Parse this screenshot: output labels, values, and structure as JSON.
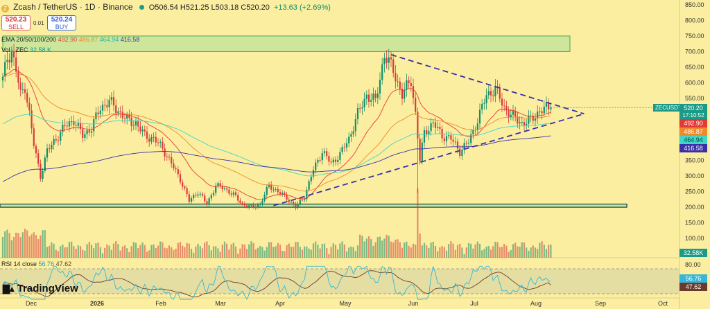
{
  "header": {
    "symbol": "Zcash / TetherUS · 1D · Binance",
    "open": "O506.54",
    "high": "H521.25",
    "low": "L503.18",
    "close": "C520.20",
    "change": "+13.63 (+2.69%)",
    "sell_price": "520.23",
    "sell_label": "SELL",
    "spread": "0.01",
    "buy_price": "520.24",
    "buy_label": "BUY",
    "ema_label": "EMA 20/50/100/200",
    "ema20": "492.90",
    "ema50": "486.87",
    "ema100": "464.94",
    "ema200": "416.58",
    "vol_label": "Vol · ZEC",
    "vol_value": "32.58 K",
    "rsi_label": "RSI 14 close",
    "rsi_value": "56.76",
    "rsi_ma": "47.62"
  },
  "price_tags": {
    "symbol": "ZECUSDT",
    "last": "520.20",
    "countdown": "17:10:52",
    "ema20": "492.90",
    "ema50": "486.87",
    "ema100": "464.94",
    "ema200": "416.58",
    "volume": "32.58K",
    "rsi": "56.76",
    "rsi_ma": "47.62"
  },
  "colors": {
    "background": "#fbeea0",
    "up": "#0f8f6a",
    "down": "#d93a3a",
    "ema20": "#e53935",
    "ema50": "#ef8a2b",
    "ema100": "#3fd6c6",
    "ema200": "#3a2fa8",
    "trendline": "#3a2fa8",
    "zone_fill": "#c9e69c",
    "zone_border": "#3aa04b",
    "rsi_line": "#36b7d6",
    "rsi_ma_line": "#6b3a2a"
  },
  "brand": "TradingView",
  "chart_data": {
    "type": "candlestick",
    "symbol": "ZECUSDT",
    "exchange": "Binance",
    "interval": "1D",
    "y_axis_ticks": [
      850,
      800,
      750,
      700,
      650,
      600,
      550,
      500,
      450,
      400,
      350,
      300,
      250,
      200,
      150,
      100
    ],
    "x_axis_ticks": [
      "Dec",
      "2026",
      "Feb",
      "Mar",
      "Apr",
      "May",
      "Jun",
      "Jul",
      "Aug",
      "Sep",
      "Oct"
    ],
    "rsi_axis_ticks": [
      80
    ],
    "ylim": [
      80,
      860
    ],
    "days": 248,
    "anchors": [
      [
        0,
        610
      ],
      [
        2,
        680
      ],
      [
        4,
        700
      ],
      [
        6,
        640
      ],
      [
        8,
        560
      ],
      [
        10,
        590
      ],
      [
        12,
        500
      ],
      [
        14,
        400
      ],
      [
        17,
        300
      ],
      [
        20,
        380
      ],
      [
        24,
        420
      ],
      [
        28,
        460
      ],
      [
        32,
        480
      ],
      [
        36,
        430
      ],
      [
        40,
        455
      ],
      [
        44,
        520
      ],
      [
        48,
        540
      ],
      [
        52,
        510
      ],
      [
        56,
        480
      ],
      [
        60,
        470
      ],
      [
        64,
        430
      ],
      [
        68,
        420
      ],
      [
        72,
        390
      ],
      [
        76,
        340
      ],
      [
        80,
        290
      ],
      [
        84,
        220
      ],
      [
        88,
        250
      ],
      [
        92,
        210
      ],
      [
        96,
        270
      ],
      [
        100,
        260
      ],
      [
        104,
        240
      ],
      [
        108,
        210
      ],
      [
        112,
        200
      ],
      [
        116,
        210
      ],
      [
        120,
        270
      ],
      [
        124,
        250
      ],
      [
        128,
        230
      ],
      [
        132,
        200
      ],
      [
        136,
        235
      ],
      [
        140,
        320
      ],
      [
        144,
        380
      ],
      [
        148,
        340
      ],
      [
        152,
        370
      ],
      [
        156,
        420
      ],
      [
        160,
        500
      ],
      [
        164,
        560
      ],
      [
        168,
        540
      ],
      [
        172,
        690
      ],
      [
        176,
        640
      ],
      [
        180,
        560
      ],
      [
        184,
        610
      ],
      [
        186,
        500
      ],
      [
        188,
        350
      ],
      [
        190,
        440
      ],
      [
        194,
        470
      ],
      [
        198,
        430
      ],
      [
        202,
        420
      ],
      [
        206,
        380
      ],
      [
        210,
        410
      ],
      [
        214,
        480
      ],
      [
        218,
        560
      ],
      [
        222,
        580
      ],
      [
        226,
        520
      ],
      [
        230,
        490
      ],
      [
        234,
        470
      ],
      [
        238,
        480
      ],
      [
        242,
        510
      ],
      [
        247,
        520
      ]
    ],
    "volume_peak_day": 187,
    "support_zone": [
      200,
      210
    ],
    "resistance_zone": [
      700,
      750
    ],
    "triangle": {
      "upper": [
        [
          175,
          690
        ],
        [
          262,
          500
        ]
      ],
      "lower": [
        [
          122,
          205
        ],
        [
          262,
          500
        ]
      ]
    },
    "rsi_last": 56.76,
    "rsi_ma_last": 47.62
  }
}
